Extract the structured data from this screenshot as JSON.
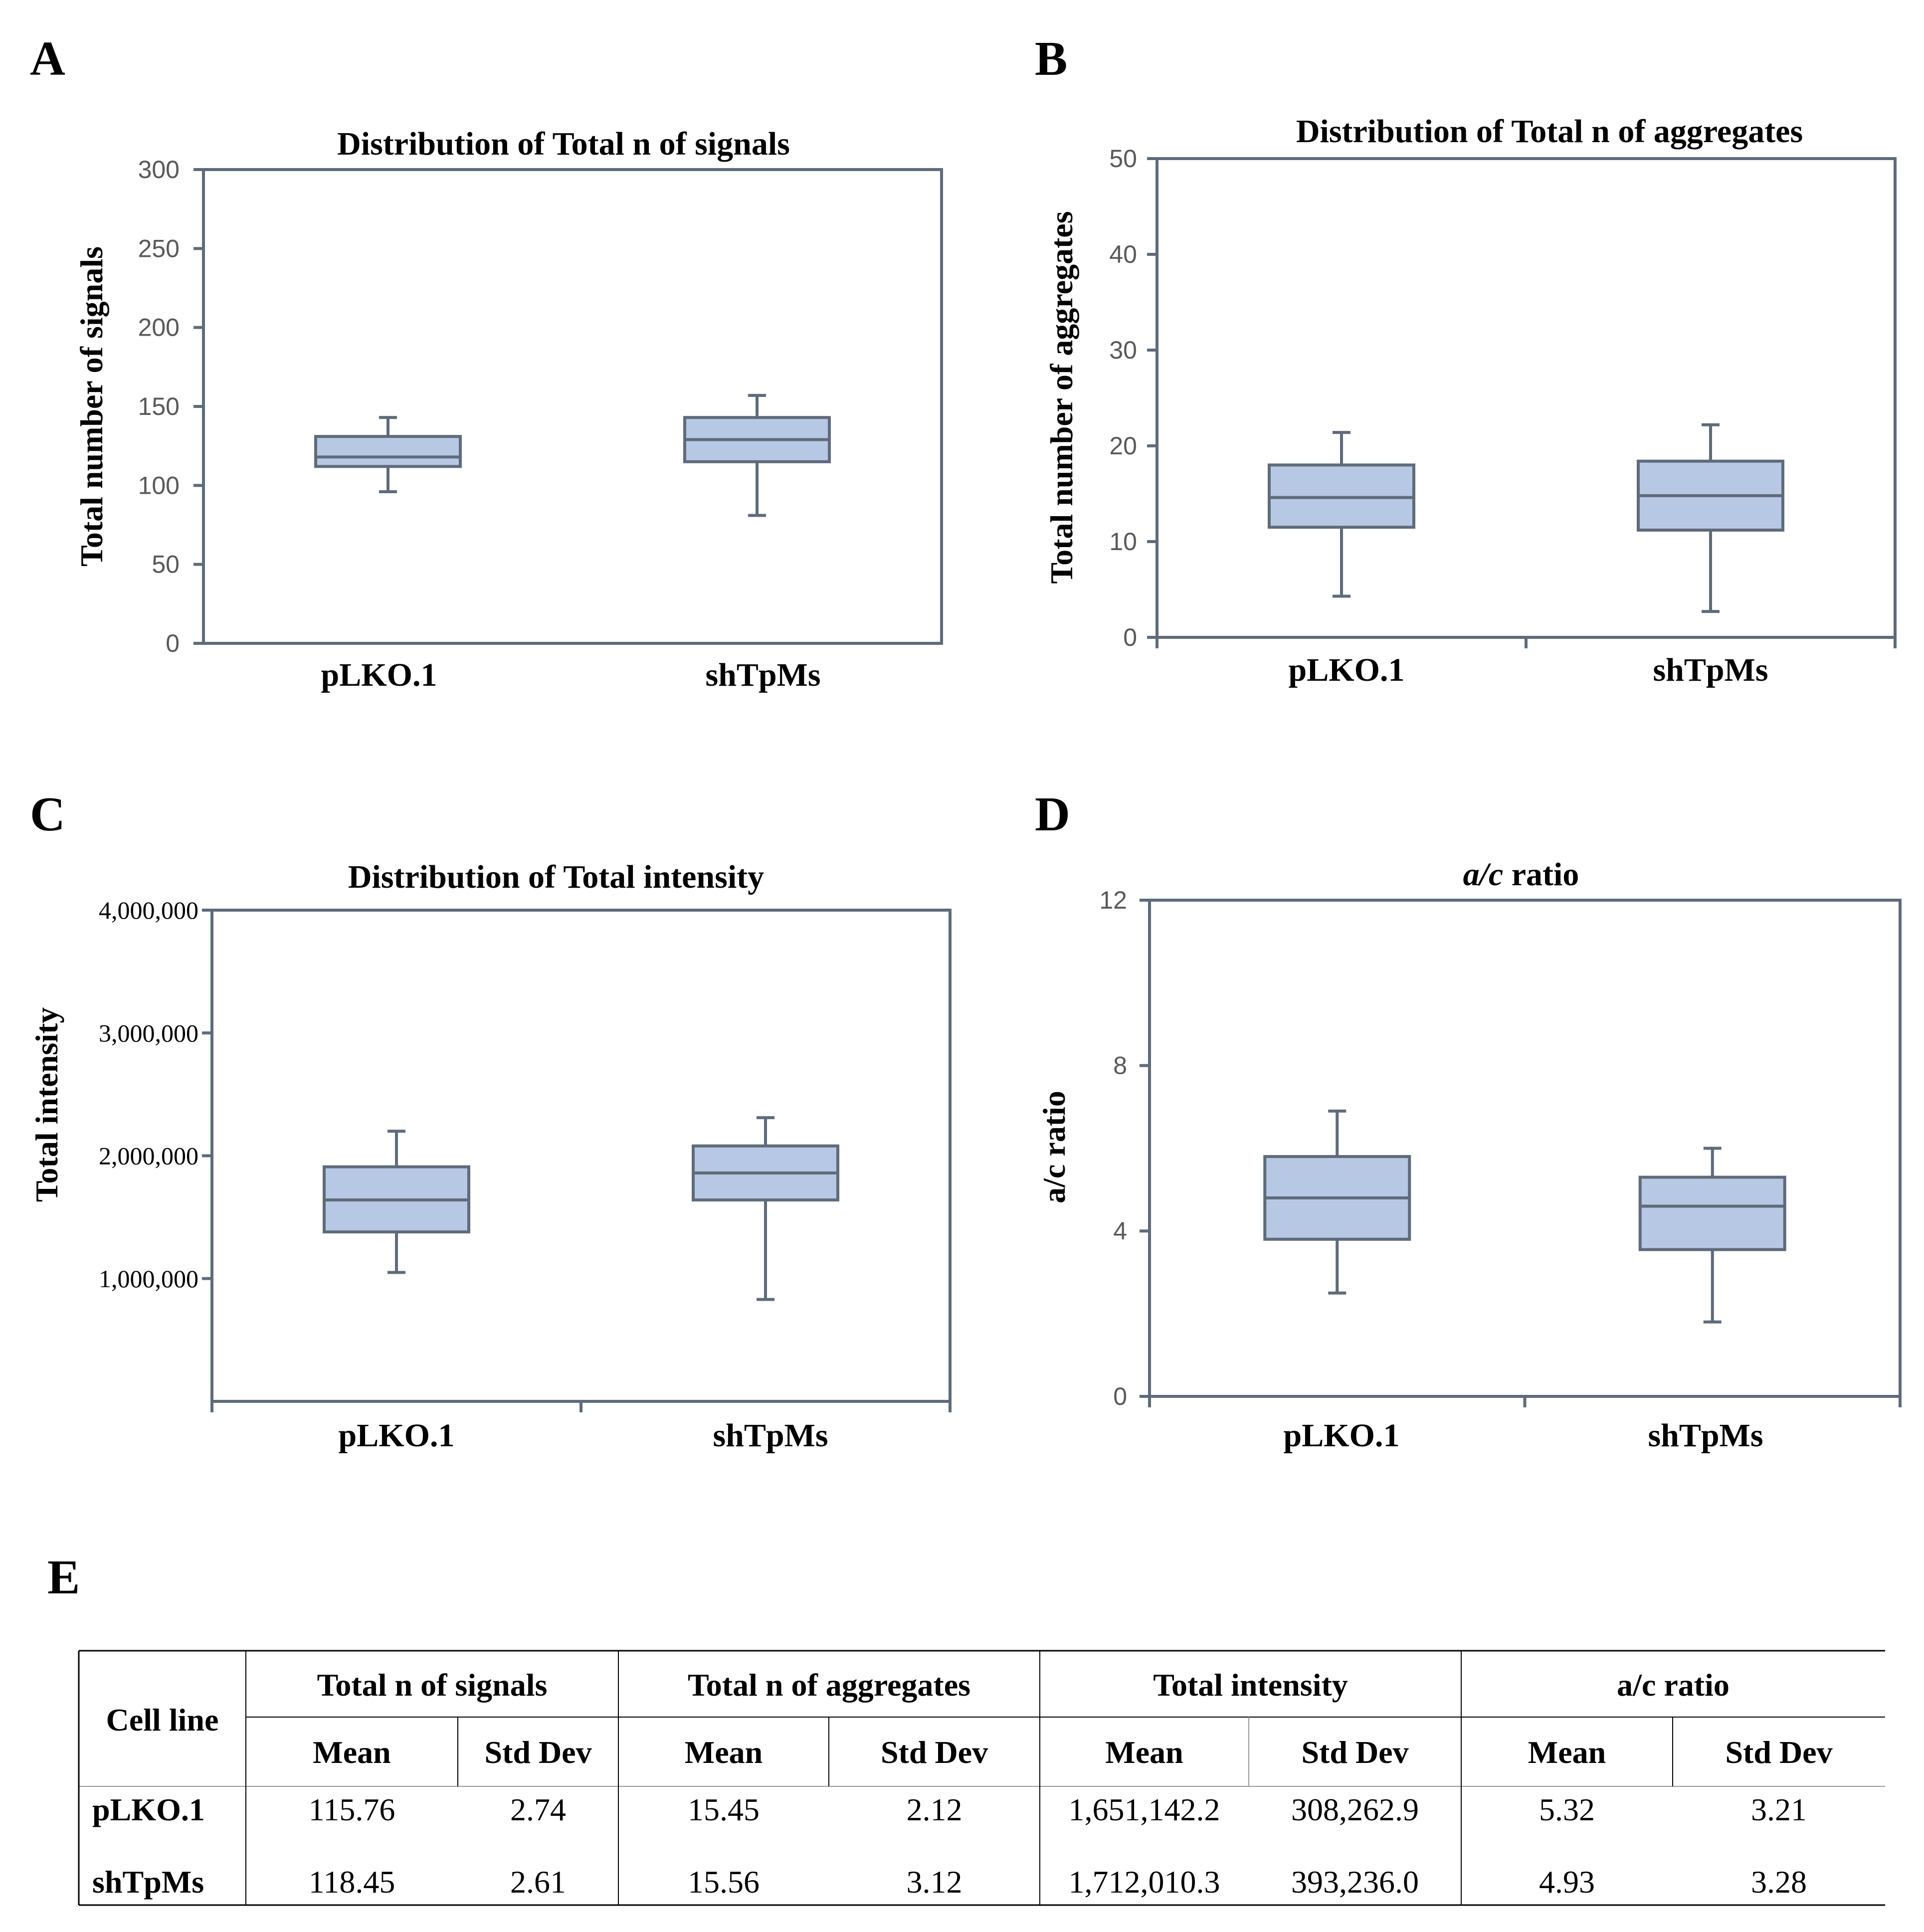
{
  "chart_data": [
    {
      "panel": "A",
      "type": "box",
      "title": "Distribution of Total n of signals",
      "title_italic_prefix": "",
      "xlabel": "",
      "ylabel": "Total number of signals",
      "categories": [
        "pLKO.1",
        "shTpMs"
      ],
      "ylim": [
        0,
        300
      ],
      "yticks": [
        0,
        50,
        100,
        150,
        200,
        250,
        300
      ],
      "ytick_labels": [
        "0",
        "50",
        "100",
        "150",
        "200",
        "250",
        "300"
      ],
      "boxes": [
        {
          "name": "pLKO.1",
          "min": 96,
          "q1": 112,
          "median": 118,
          "q3": 131,
          "max": 143
        },
        {
          "name": "shTpMs",
          "min": 81,
          "q1": 115,
          "median": 129,
          "q3": 143,
          "max": 157
        }
      ]
    },
    {
      "panel": "B",
      "type": "box",
      "title": "Distribution of Total n of aggregates",
      "title_italic_prefix": "",
      "xlabel": "",
      "ylabel": "Total number of aggregates",
      "categories": [
        "pLKO.1",
        "shTpMs"
      ],
      "ylim": [
        0,
        50
      ],
      "yticks": [
        0,
        10,
        20,
        30,
        40,
        50
      ],
      "ytick_labels": [
        "0",
        "10",
        "20",
        "30",
        "40",
        "50"
      ],
      "boxes": [
        {
          "name": "pLKO.1",
          "min": 4.3,
          "q1": 11.5,
          "median": 14.6,
          "q3": 18,
          "max": 21.4
        },
        {
          "name": "shTpMs",
          "min": 2.7,
          "q1": 11.2,
          "median": 14.8,
          "q3": 18.4,
          "max": 22.2
        }
      ]
    },
    {
      "panel": "C",
      "type": "box",
      "title": "Distribution of Total intensity",
      "title_italic_prefix": "",
      "xlabel": "",
      "ylabel": "Total intensity",
      "categories": [
        "pLKO.1",
        "shTpMs"
      ],
      "ylim": [
        0,
        4000000
      ],
      "yticks": [
        1000000,
        2000000,
        3000000,
        4000000
      ],
      "ytick_labels": [
        "1,000,000",
        "2,000,000",
        "3,000,000",
        "4,000,000"
      ],
      "boxes": [
        {
          "name": "pLKO.1",
          "min": 1050000,
          "q1": 1380000,
          "median": 1640000,
          "q3": 1910000,
          "max": 2200000
        },
        {
          "name": "shTpMs",
          "min": 830000,
          "q1": 1640000,
          "median": 1860000,
          "q3": 2080000,
          "max": 2310000
        }
      ]
    },
    {
      "panel": "D",
      "type": "box",
      "title": " ratio",
      "title_italic_prefix": "a/c",
      "xlabel": "",
      "ylabel": "a/c ratio",
      "categories": [
        "pLKO.1",
        "shTpMs"
      ],
      "ylim": [
        0,
        12
      ],
      "yticks": [
        0,
        4,
        8,
        12
      ],
      "ytick_labels": [
        "0",
        "4",
        "8",
        "12"
      ],
      "boxes": [
        {
          "name": "pLKO.1",
          "min": 2.5,
          "q1": 3.8,
          "median": 4.8,
          "q3": 5.8,
          "max": 6.9
        },
        {
          "name": "shTpMs",
          "min": 1.8,
          "q1": 3.55,
          "median": 4.6,
          "q3": 5.3,
          "max": 6.0
        }
      ]
    },
    {
      "panel": "E",
      "type": "table",
      "row_header": "Cell line",
      "groups": [
        "Total n of signals",
        "Total n of aggregates",
        "Total intensity",
        "a/c ratio"
      ],
      "subheaders": [
        "Mean",
        "Std Dev"
      ],
      "rows": [
        {
          "label": "pLKO.1",
          "values": [
            "115.76",
            "2.74",
            "15.45",
            "2.12",
            "1,651,142.2",
            "308,262.9",
            "5.32",
            "3.21"
          ]
        },
        {
          "label": "shTpMs",
          "values": [
            "118.45",
            "2.61",
            "15.56",
            "3.12",
            "1,712,010.3",
            "393,236.0",
            "4.93",
            "3.28"
          ]
        }
      ]
    }
  ]
}
